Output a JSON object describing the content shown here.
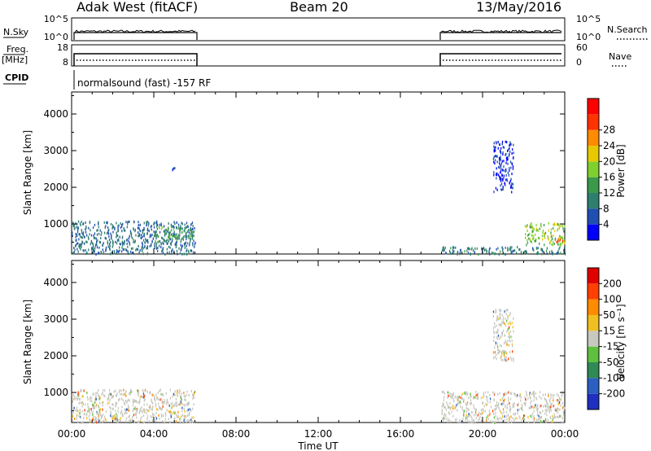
{
  "header": {
    "title": "Adak West (fitACF)",
    "beam": "Beam 20",
    "date": "13/May/2016"
  },
  "noise_panel": {
    "left_label": "N.Sky",
    "left_ticks": [
      "10^5",
      "10^0"
    ],
    "right_label": "N.Search",
    "right_ticks": [
      "10^5",
      "10^0"
    ]
  },
  "freq_panel": {
    "left_label_line1": "Freq.",
    "left_label_line2": "[MHz]",
    "left_ticks": [
      "18",
      "8"
    ],
    "right_label": "Nave",
    "right_ticks": [
      "60",
      "0"
    ]
  },
  "cpid_panel": {
    "label": "CPID",
    "text": "normalsound (fast) -157 RF"
  },
  "x_axis": {
    "label": "Time UT",
    "ticks": [
      "00:00",
      "04:00",
      "08:00",
      "12:00",
      "16:00",
      "20:00",
      "00:00"
    ]
  },
  "chart_data": [
    {
      "type": "heatmap",
      "ylabel": "Slant Range [km]",
      "yticks": [
        "1000",
        "2000",
        "3000",
        "4000"
      ],
      "ylim": [
        180,
        4600
      ],
      "xlim": [
        0,
        24
      ],
      "colorbar": {
        "label": "Power [dB]",
        "ticks": [
          "4",
          "8",
          "12",
          "16",
          "20",
          "24",
          "28"
        ],
        "colors": [
          "#0000ff",
          "#1f4fb0",
          "#2f7f6f",
          "#3a9a4a",
          "#7fcf2f",
          "#e8c800",
          "#ff8c00",
          "#ff3300",
          "#ff0000"
        ]
      },
      "data_regions": [
        {
          "t_start": 0.0,
          "t_end": 6.0,
          "range_min": 200,
          "range_max": 1100,
          "power": 10
        },
        {
          "t_start": 4.0,
          "t_end": 6.0,
          "range_min": 550,
          "range_max": 950,
          "power": 16
        },
        {
          "t_start": 4.8,
          "t_end": 5.0,
          "range_min": 2400,
          "range_max": 2600,
          "power": 6
        },
        {
          "t_start": 18.0,
          "t_end": 24.0,
          "range_min": 200,
          "range_max": 400,
          "power": 12
        },
        {
          "t_start": 22.0,
          "t_end": 24.0,
          "range_min": 450,
          "range_max": 1050,
          "power": 20
        },
        {
          "t_start": 23.5,
          "t_end": 24.0,
          "range_min": 500,
          "range_max": 700,
          "power": 28
        },
        {
          "t_start": 20.5,
          "t_end": 21.5,
          "range_min": 1900,
          "range_max": 3300,
          "power": 6
        }
      ]
    },
    {
      "type": "heatmap",
      "ylabel": "Slant Range [km]",
      "yticks": [
        "1000",
        "2000",
        "3000",
        "4000"
      ],
      "ylim": [
        180,
        4600
      ],
      "xlim": [
        0,
        24
      ],
      "colorbar": {
        "label": "Velocity [m s⁻¹]",
        "ticks": [
          "200",
          "100",
          "50",
          "15",
          "-15",
          "-50",
          "-100",
          "-200"
        ],
        "colors": [
          "#1f2fc0",
          "#2b5fc0",
          "#2f8a55",
          "#5fc040",
          "#c8c8c0",
          "#f0c020",
          "#ff8c00",
          "#ff4000",
          "#e00000"
        ]
      },
      "data_regions": [
        {
          "t_start": 0.0,
          "t_end": 6.0,
          "range_min": 200,
          "range_max": 1100,
          "velocity": 0
        },
        {
          "t_start": 18.0,
          "t_end": 24.0,
          "range_min": 200,
          "range_max": 1050,
          "velocity": 0
        },
        {
          "t_start": 20.5,
          "t_end": 21.5,
          "range_min": 1900,
          "range_max": 3300,
          "velocity": 0
        }
      ]
    }
  ]
}
